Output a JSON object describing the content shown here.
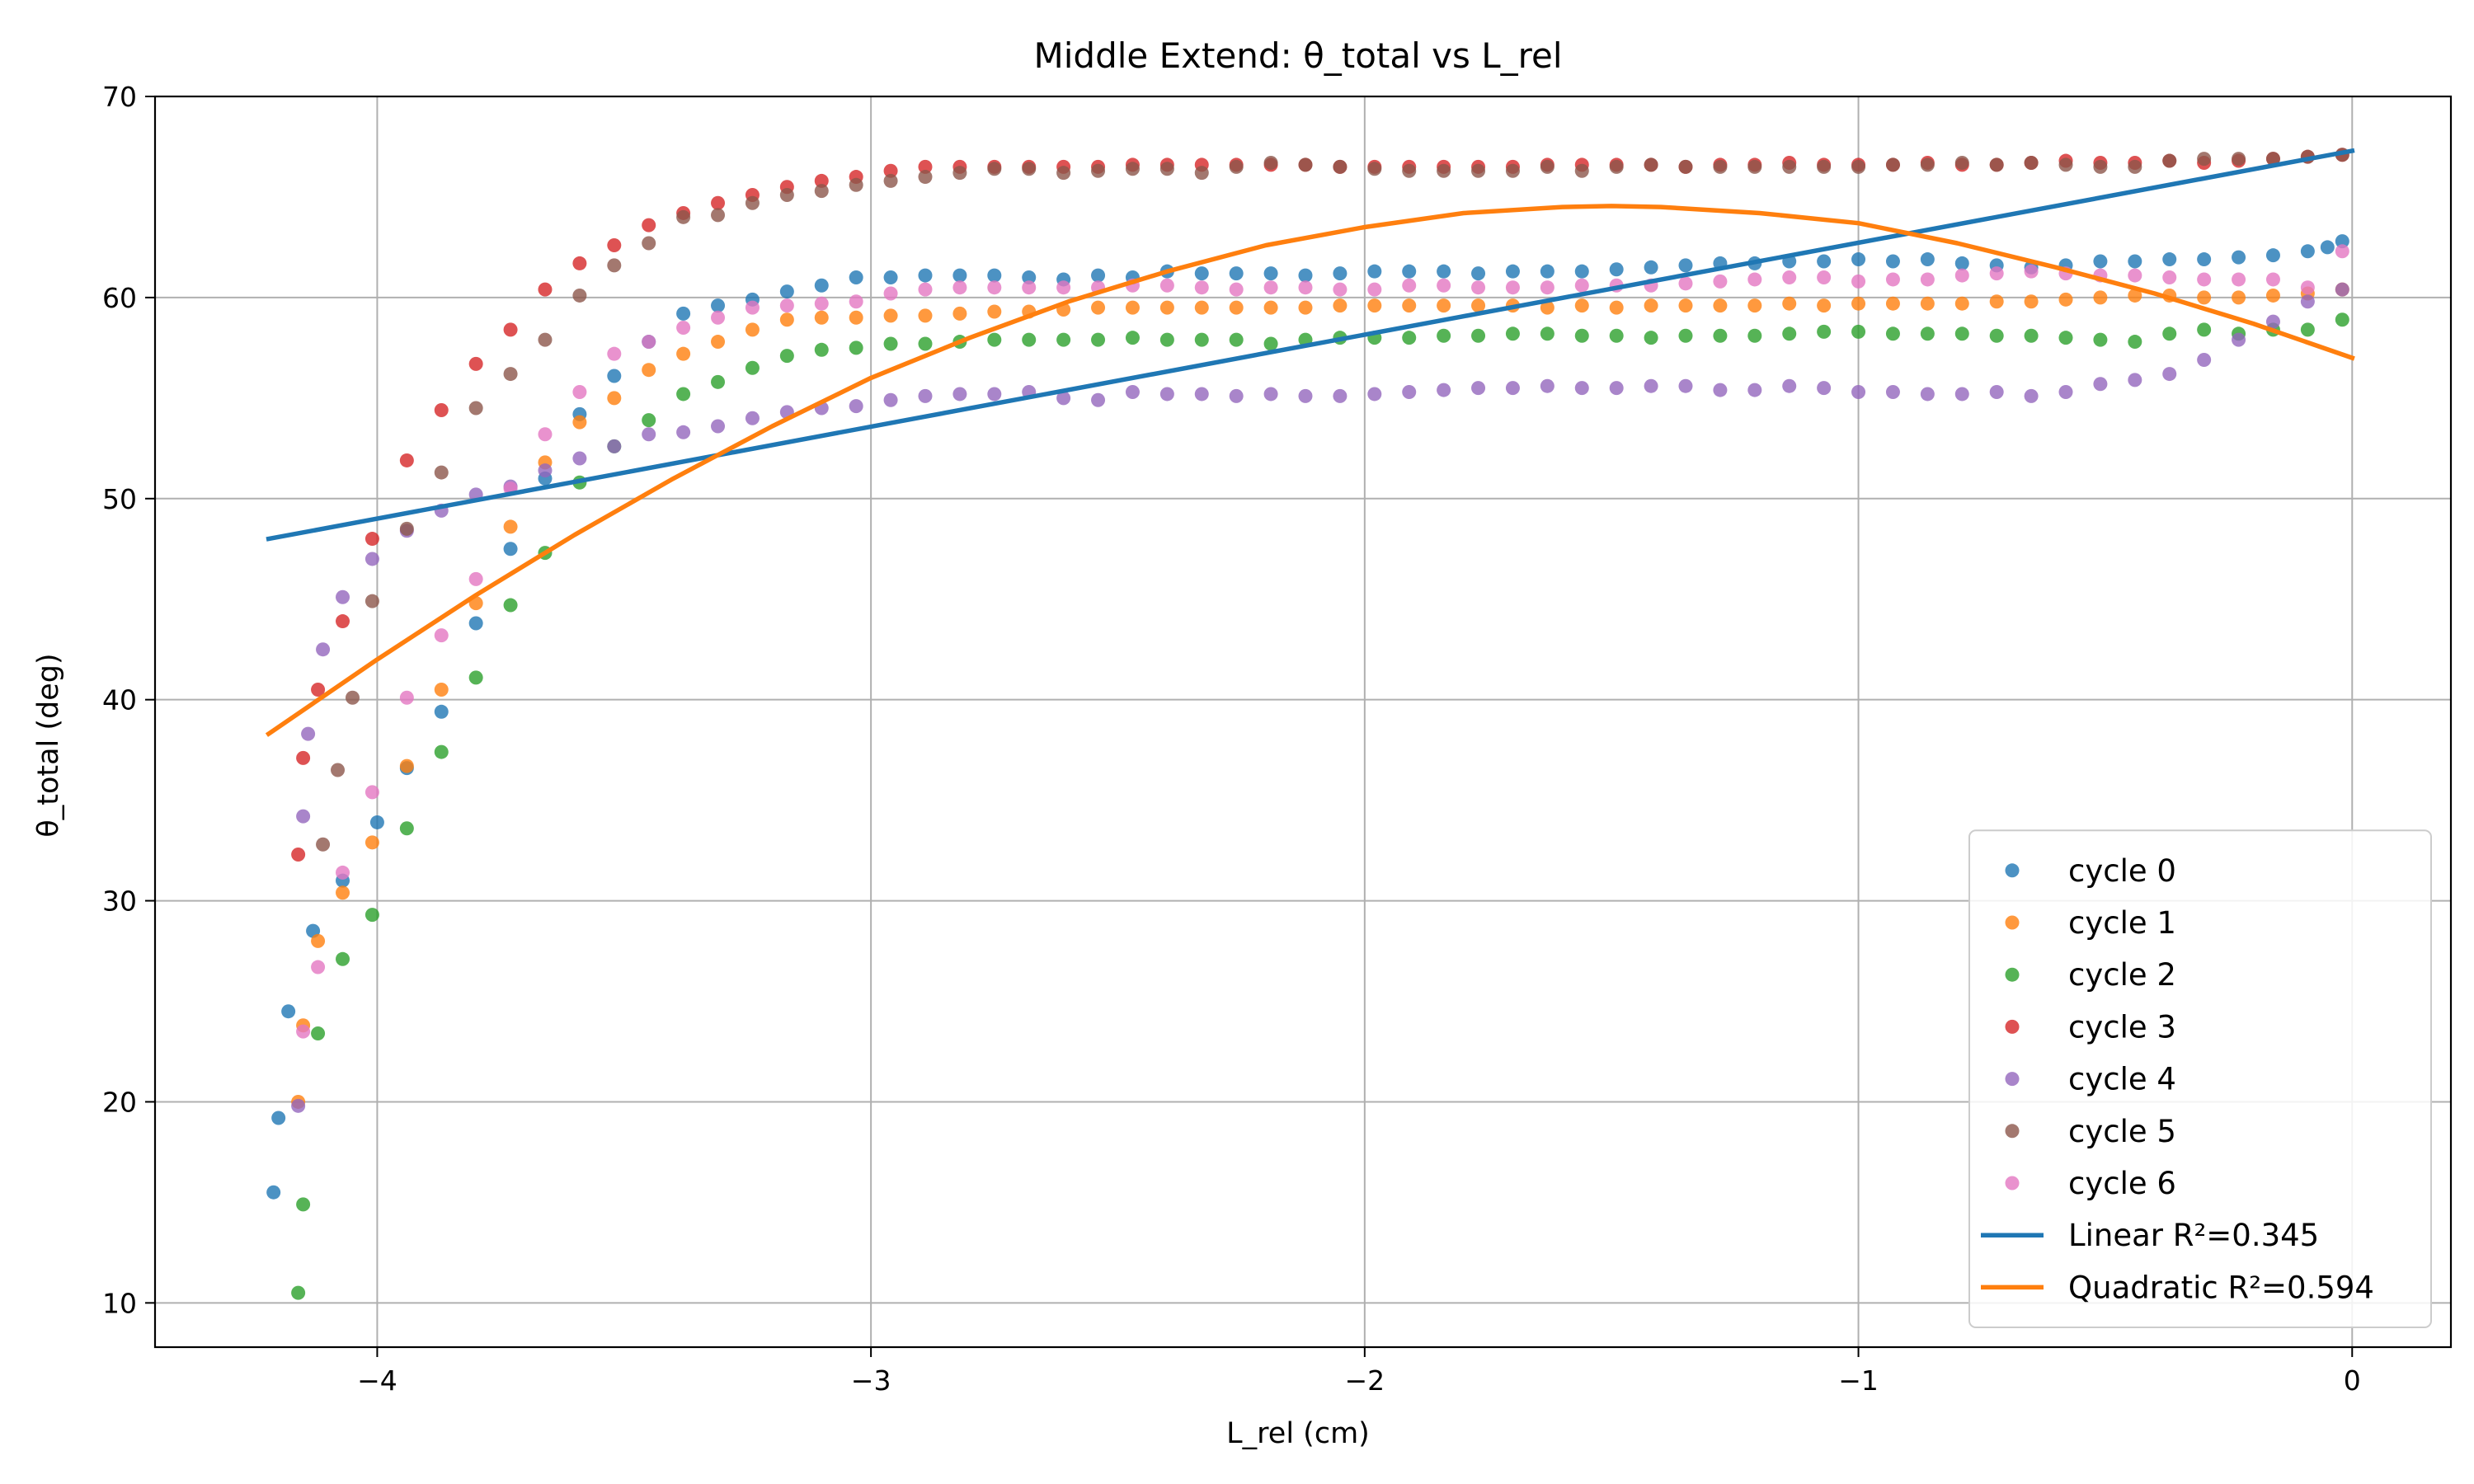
{
  "chart_data": {
    "type": "scatter",
    "title": "Middle Extend: θ_total vs L_rel",
    "xlabel": "L_rel (cm)",
    "ylabel": "θ_total (deg)",
    "xlim": [
      -4.45,
      0.2
    ],
    "ylim": [
      7.8,
      70
    ],
    "xticks": [
      -4,
      -3,
      -2,
      -1,
      0
    ],
    "xtick_labels": [
      "−4",
      "−3",
      "−2",
      "−1",
      "0"
    ],
    "yticks": [
      10,
      20,
      30,
      40,
      50,
      60,
      70
    ],
    "ytick_labels": [
      "10",
      "20",
      "30",
      "40",
      "50",
      "60",
      "70"
    ],
    "grid": true,
    "legend_position": "lower right",
    "series": [
      {
        "name": "cycle 0",
        "kind": "scatter",
        "color": "#1f77b4",
        "x": [
          -4.21,
          -4.2,
          -4.18,
          -4.13,
          -4.07,
          -4.0,
          -3.94,
          -3.87,
          -3.8,
          -3.73,
          -3.66,
          -3.59,
          -3.52,
          -3.45,
          -3.38,
          -3.31,
          -3.24,
          -3.17,
          -3.1,
          -3.03,
          -2.96,
          -2.89,
          -2.82,
          -2.75,
          -2.68,
          -2.61,
          -2.54,
          -2.47,
          -2.4,
          -2.33,
          -2.26,
          -2.19,
          -2.12,
          -2.05,
          -1.98,
          -1.91,
          -1.84,
          -1.77,
          -1.7,
          -1.63,
          -1.56,
          -1.49,
          -1.42,
          -1.35,
          -1.28,
          -1.21,
          -1.14,
          -1.07,
          -1.0,
          -0.93,
          -0.86,
          -0.79,
          -0.72,
          -0.65,
          -0.58,
          -0.51,
          -0.44,
          -0.37,
          -0.3,
          -0.23,
          -0.16,
          -0.09,
          -0.05,
          -0.02
        ],
        "y": [
          15.5,
          19.2,
          24.5,
          28.5,
          31.0,
          33.9,
          36.6,
          39.4,
          43.8,
          47.5,
          51.0,
          54.2,
          56.1,
          57.8,
          59.2,
          59.6,
          59.9,
          60.3,
          60.6,
          61.0,
          61.0,
          61.1,
          61.1,
          61.1,
          61.0,
          60.9,
          61.1,
          61.0,
          61.3,
          61.2,
          61.2,
          61.2,
          61.1,
          61.2,
          61.3,
          61.3,
          61.3,
          61.2,
          61.3,
          61.3,
          61.3,
          61.4,
          61.5,
          61.6,
          61.7,
          61.7,
          61.8,
          61.8,
          61.9,
          61.8,
          61.9,
          61.7,
          61.6,
          61.5,
          61.6,
          61.8,
          61.8,
          61.9,
          61.9,
          62.0,
          62.1,
          62.3,
          62.5,
          62.8
        ]
      },
      {
        "name": "cycle 1",
        "kind": "scatter",
        "color": "#ff7f0e",
        "x": [
          -4.16,
          -4.15,
          -4.12,
          -4.07,
          -4.01,
          -3.94,
          -3.87,
          -3.8,
          -3.73,
          -3.66,
          -3.59,
          -3.52,
          -3.45,
          -3.38,
          -3.31,
          -3.24,
          -3.17,
          -3.1,
          -3.03,
          -2.96,
          -2.89,
          -2.82,
          -2.75,
          -2.68,
          -2.61,
          -2.54,
          -2.47,
          -2.4,
          -2.33,
          -2.26,
          -2.19,
          -2.12,
          -2.05,
          -1.98,
          -1.91,
          -1.84,
          -1.77,
          -1.7,
          -1.63,
          -1.56,
          -1.49,
          -1.42,
          -1.35,
          -1.28,
          -1.21,
          -1.14,
          -1.07,
          -1.0,
          -0.93,
          -0.86,
          -0.79,
          -0.72,
          -0.65,
          -0.58,
          -0.51,
          -0.44,
          -0.37,
          -0.3,
          -0.23,
          -0.16,
          -0.09,
          -0.02
        ],
        "y": [
          20.0,
          23.8,
          28.0,
          30.4,
          32.9,
          36.7,
          40.5,
          44.8,
          48.6,
          51.8,
          53.8,
          55.0,
          56.4,
          57.2,
          57.8,
          58.4,
          58.9,
          59.0,
          59.0,
          59.1,
          59.1,
          59.2,
          59.3,
          59.3,
          59.4,
          59.5,
          59.5,
          59.5,
          59.5,
          59.5,
          59.5,
          59.5,
          59.6,
          59.6,
          59.6,
          59.6,
          59.6,
          59.6,
          59.5,
          59.6,
          59.5,
          59.6,
          59.6,
          59.6,
          59.6,
          59.7,
          59.6,
          59.7,
          59.7,
          59.7,
          59.7,
          59.8,
          59.8,
          59.9,
          60.0,
          60.1,
          60.1,
          60.0,
          60.0,
          60.1,
          60.2,
          60.4
        ]
      },
      {
        "name": "cycle 2",
        "kind": "scatter",
        "color": "#2ca02c",
        "x": [
          -4.16,
          -4.15,
          -4.12,
          -4.07,
          -4.01,
          -3.94,
          -3.87,
          -3.8,
          -3.73,
          -3.66,
          -3.59,
          -3.52,
          -3.45,
          -3.38,
          -3.31,
          -3.24,
          -3.17,
          -3.1,
          -3.03,
          -2.96,
          -2.89,
          -2.82,
          -2.75,
          -2.68,
          -2.61,
          -2.54,
          -2.47,
          -2.4,
          -2.33,
          -2.26,
          -2.19,
          -2.12,
          -2.05,
          -1.98,
          -1.91,
          -1.84,
          -1.77,
          -1.7,
          -1.63,
          -1.56,
          -1.49,
          -1.42,
          -1.35,
          -1.28,
          -1.21,
          -1.14,
          -1.07,
          -1.0,
          -0.93,
          -0.86,
          -0.79,
          -0.72,
          -0.65,
          -0.58,
          -0.51,
          -0.44,
          -0.37,
          -0.3,
          -0.23,
          -0.16,
          -0.09,
          -0.02
        ],
        "y": [
          10.5,
          14.9,
          23.4,
          27.1,
          29.3,
          33.6,
          37.4,
          41.1,
          44.7,
          47.3,
          50.8,
          52.6,
          53.9,
          55.2,
          55.8,
          56.5,
          57.1,
          57.4,
          57.5,
          57.7,
          57.7,
          57.8,
          57.9,
          57.9,
          57.9,
          57.9,
          58.0,
          57.9,
          57.9,
          57.9,
          57.7,
          57.9,
          58.0,
          58.0,
          58.0,
          58.1,
          58.1,
          58.2,
          58.2,
          58.1,
          58.1,
          58.0,
          58.1,
          58.1,
          58.1,
          58.2,
          58.3,
          58.3,
          58.2,
          58.2,
          58.2,
          58.1,
          58.1,
          58.0,
          57.9,
          57.8,
          58.2,
          58.4,
          58.2,
          58.4,
          58.4,
          58.9
        ]
      },
      {
        "name": "cycle 3",
        "kind": "scatter",
        "color": "#d62728",
        "x": [
          -4.16,
          -4.15,
          -4.12,
          -4.07,
          -4.01,
          -3.94,
          -3.87,
          -3.8,
          -3.73,
          -3.66,
          -3.59,
          -3.52,
          -3.45,
          -3.38,
          -3.31,
          -3.24,
          -3.17,
          -3.1,
          -3.03,
          -2.96,
          -2.89,
          -2.82,
          -2.75,
          -2.68,
          -2.61,
          -2.54,
          -2.47,
          -2.4,
          -2.33,
          -2.26,
          -2.19,
          -2.12,
          -2.05,
          -1.98,
          -1.91,
          -1.84,
          -1.77,
          -1.7,
          -1.63,
          -1.56,
          -1.49,
          -1.42,
          -1.35,
          -1.28,
          -1.21,
          -1.14,
          -1.07,
          -1.0,
          -0.93,
          -0.86,
          -0.79,
          -0.72,
          -0.65,
          -0.58,
          -0.51,
          -0.44,
          -0.37,
          -0.3,
          -0.23,
          -0.16,
          -0.09,
          -0.02
        ],
        "y": [
          32.3,
          37.1,
          40.5,
          43.9,
          48.0,
          51.9,
          54.4,
          56.7,
          58.4,
          60.4,
          61.7,
          62.6,
          63.6,
          64.2,
          64.7,
          65.1,
          65.5,
          65.8,
          66.0,
          66.3,
          66.5,
          66.5,
          66.5,
          66.5,
          66.5,
          66.5,
          66.6,
          66.6,
          66.6,
          66.6,
          66.6,
          66.6,
          66.5,
          66.5,
          66.5,
          66.5,
          66.5,
          66.5,
          66.6,
          66.6,
          66.6,
          66.6,
          66.5,
          66.6,
          66.6,
          66.7,
          66.6,
          66.6,
          66.6,
          66.7,
          66.6,
          66.6,
          66.7,
          66.8,
          66.7,
          66.7,
          66.8,
          66.7,
          66.8,
          66.9,
          67.0,
          67.1
        ]
      },
      {
        "name": "cycle 4",
        "kind": "scatter",
        "color": "#9467bd",
        "x": [
          -4.16,
          -4.15,
          -4.14,
          -4.11,
          -4.07,
          -4.01,
          -3.94,
          -3.87,
          -3.8,
          -3.73,
          -3.66,
          -3.59,
          -3.52,
          -3.45,
          -3.38,
          -3.31,
          -3.24,
          -3.17,
          -3.1,
          -3.03,
          -2.96,
          -2.89,
          -2.82,
          -2.75,
          -2.68,
          -2.61,
          -2.54,
          -2.47,
          -2.4,
          -2.33,
          -2.26,
          -2.19,
          -2.12,
          -2.05,
          -1.98,
          -1.91,
          -1.84,
          -1.77,
          -1.7,
          -1.63,
          -1.56,
          -1.49,
          -1.42,
          -1.35,
          -1.28,
          -1.21,
          -1.14,
          -1.07,
          -1.0,
          -0.93,
          -0.86,
          -0.79,
          -0.72,
          -0.65,
          -0.58,
          -0.51,
          -0.44,
          -0.37,
          -0.3,
          -0.23,
          -0.16,
          -0.09,
          -0.02
        ],
        "y": [
          19.8,
          34.2,
          38.3,
          42.5,
          45.1,
          47.0,
          48.4,
          49.4,
          50.2,
          50.6,
          51.4,
          52.0,
          52.6,
          53.2,
          53.3,
          53.6,
          54.0,
          54.3,
          54.5,
          54.6,
          54.9,
          55.1,
          55.2,
          55.2,
          55.3,
          55.0,
          54.9,
          55.3,
          55.2,
          55.2,
          55.1,
          55.2,
          55.1,
          55.1,
          55.2,
          55.3,
          55.4,
          55.5,
          55.5,
          55.6,
          55.5,
          55.5,
          55.6,
          55.6,
          55.4,
          55.4,
          55.6,
          55.5,
          55.3,
          55.3,
          55.2,
          55.2,
          55.3,
          55.1,
          55.3,
          55.7,
          55.9,
          56.2,
          56.9,
          57.9,
          58.8,
          59.8,
          60.4
        ]
      },
      {
        "name": "cycle 5",
        "kind": "scatter",
        "color": "#8c564b",
        "x": [
          -4.11,
          -4.08,
          -4.05,
          -4.01,
          -3.94,
          -3.87,
          -3.8,
          -3.73,
          -3.66,
          -3.59,
          -3.52,
          -3.45,
          -3.38,
          -3.31,
          -3.24,
          -3.17,
          -3.1,
          -3.03,
          -2.96,
          -2.89,
          -2.82,
          -2.75,
          -2.68,
          -2.61,
          -2.54,
          -2.47,
          -2.4,
          -2.33,
          -2.26,
          -2.19,
          -2.12,
          -2.05,
          -1.98,
          -1.91,
          -1.84,
          -1.77,
          -1.7,
          -1.63,
          -1.56,
          -1.49,
          -1.42,
          -1.35,
          -1.28,
          -1.21,
          -1.14,
          -1.07,
          -1.0,
          -0.93,
          -0.86,
          -0.79,
          -0.72,
          -0.65,
          -0.58,
          -0.51,
          -0.44,
          -0.37,
          -0.3,
          -0.23,
          -0.16,
          -0.09,
          -0.02
        ],
        "y": [
          32.8,
          36.5,
          40.1,
          44.9,
          48.5,
          51.3,
          54.5,
          56.2,
          57.9,
          60.1,
          61.6,
          62.7,
          64.0,
          64.1,
          64.7,
          65.1,
          65.3,
          65.6,
          65.8,
          66.0,
          66.2,
          66.4,
          66.4,
          66.2,
          66.3,
          66.4,
          66.4,
          66.2,
          66.5,
          66.7,
          66.6,
          66.5,
          66.4,
          66.3,
          66.3,
          66.3,
          66.3,
          66.5,
          66.3,
          66.5,
          66.6,
          66.5,
          66.5,
          66.5,
          66.5,
          66.5,
          66.5,
          66.6,
          66.6,
          66.7,
          66.6,
          66.7,
          66.6,
          66.5,
          66.5,
          66.8,
          66.9,
          66.9,
          66.9,
          67.0,
          67.1
        ]
      },
      {
        "name": "cycle 6",
        "kind": "scatter",
        "color": "#e377c2",
        "x": [
          -4.15,
          -4.12,
          -4.07,
          -4.01,
          -3.94,
          -3.87,
          -3.8,
          -3.73,
          -3.66,
          -3.59,
          -3.52,
          -3.45,
          -3.38,
          -3.31,
          -3.24,
          -3.17,
          -3.1,
          -3.03,
          -2.96,
          -2.89,
          -2.82,
          -2.75,
          -2.68,
          -2.61,
          -2.54,
          -2.47,
          -2.4,
          -2.33,
          -2.26,
          -2.19,
          -2.12,
          -2.05,
          -1.98,
          -1.91,
          -1.84,
          -1.77,
          -1.7,
          -1.63,
          -1.56,
          -1.49,
          -1.42,
          -1.35,
          -1.28,
          -1.21,
          -1.14,
          -1.07,
          -1.0,
          -0.93,
          -0.86,
          -0.79,
          -0.72,
          -0.65,
          -0.58,
          -0.51,
          -0.44,
          -0.37,
          -0.3,
          -0.23,
          -0.16,
          -0.09,
          -0.02
        ],
        "y": [
          23.5,
          26.7,
          31.4,
          35.4,
          40.1,
          43.2,
          46.0,
          50.5,
          53.2,
          55.3,
          57.2,
          57.8,
          58.5,
          59.0,
          59.5,
          59.6,
          59.7,
          59.8,
          60.2,
          60.4,
          60.5,
          60.5,
          60.5,
          60.5,
          60.5,
          60.6,
          60.6,
          60.5,
          60.4,
          60.5,
          60.5,
          60.4,
          60.4,
          60.6,
          60.6,
          60.5,
          60.5,
          60.5,
          60.6,
          60.6,
          60.6,
          60.7,
          60.8,
          60.9,
          61.0,
          61.0,
          60.8,
          60.9,
          60.9,
          61.1,
          61.2,
          61.3,
          61.2,
          61.1,
          61.1,
          61.0,
          60.9,
          60.9,
          60.9,
          60.5,
          62.3
        ]
      },
      {
        "name": "Linear R²=0.345",
        "kind": "line",
        "color": "#1f77b4",
        "x": [
          -4.22,
          0.0
        ],
        "y": [
          48.0,
          67.3
        ]
      },
      {
        "name": "Quadratic R²=0.594",
        "kind": "line",
        "color": "#ff7f0e",
        "x": [
          -4.22,
          -4.0,
          -3.8,
          -3.6,
          -3.4,
          -3.2,
          -3.0,
          -2.8,
          -2.6,
          -2.4,
          -2.2,
          -2.0,
          -1.8,
          -1.6,
          -1.5,
          -1.4,
          -1.2,
          -1.0,
          -0.8,
          -0.6,
          -0.4,
          -0.2,
          0.0
        ],
        "y": [
          38.3,
          42.0,
          45.2,
          48.2,
          51.0,
          53.6,
          56.0,
          58.0,
          59.8,
          61.3,
          62.6,
          63.5,
          64.2,
          64.5,
          64.55,
          64.5,
          64.2,
          63.7,
          62.7,
          61.5,
          60.2,
          58.7,
          57.0
        ]
      }
    ]
  }
}
